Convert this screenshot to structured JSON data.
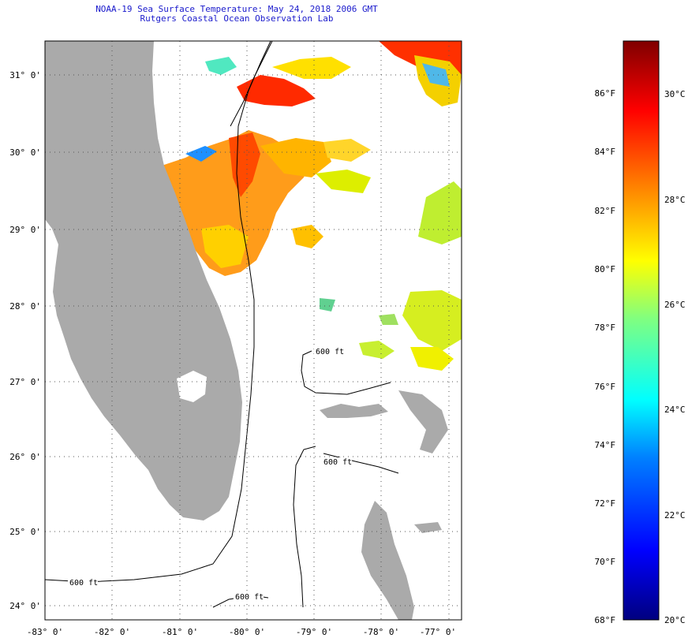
{
  "title": {
    "line1": "NOAA-19 Sea Surface Temperature:  May 24, 2018 2006 GMT",
    "line2": "Rutgers Coastal Ocean Observation Lab"
  },
  "map": {
    "lon_labels": [
      "-83° 0'",
      "-82° 0'",
      "-81° 0'",
      "-80° 0'",
      "-79° 0'",
      "-78° 0'",
      "-77° 0'"
    ],
    "lat_labels": [
      "31° 0'",
      "30° 0'",
      "29° 0'",
      "28° 0'",
      "27° 0'",
      "26° 0'",
      "25° 0'",
      "24° 0'"
    ],
    "contour_labels": [
      "600 ft",
      "600 ft",
      "600 ft",
      "600 ft"
    ],
    "land_color": "#aaaaaa"
  },
  "colorbar": {
    "fahrenheit_labels": [
      "86°F",
      "84°F",
      "82°F",
      "80°F",
      "78°F",
      "76°F",
      "74°F",
      "72°F",
      "70°F",
      "68°F"
    ],
    "celsius_labels": [
      "30°C",
      "28°C",
      "26°C",
      "24°C",
      "22°C",
      "20°C"
    ],
    "range_f": [
      68,
      88
    ],
    "colors": [
      "#00007f",
      "#0000ff",
      "#0080ff",
      "#00ffff",
      "#80ff80",
      "#ffff00",
      "#ff8000",
      "#ff0000",
      "#7f0000"
    ]
  }
}
